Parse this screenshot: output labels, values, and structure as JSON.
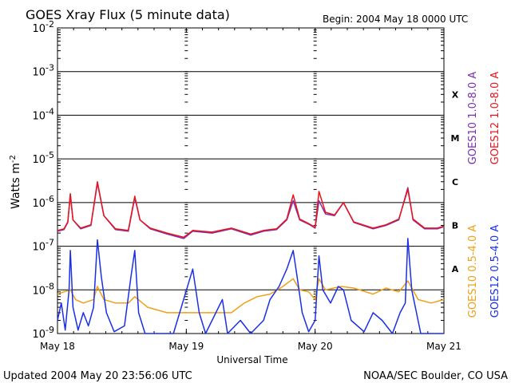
{
  "page": {
    "title": "GOES Xray Flux (5 minute data)",
    "begin_label": "Begin:  2004 May 18 0000 UTC",
    "updated": "Updated 2004 May 20 23:56:06 UTC",
    "credit": "NOAA/SEC Boulder, CO USA"
  },
  "chart_data": {
    "type": "line",
    "title": "GOES Xray Flux (5 minute data)",
    "xlabel": "Universal Time",
    "ylabel": "Watts m",
    "ylabel_superscript": "-2",
    "log_y": true,
    "ylim": [
      1e-09,
      0.01
    ],
    "y_ticks": [
      {
        "mant": "10",
        "exp": "-9"
      },
      {
        "mant": "10",
        "exp": "-8"
      },
      {
        "mant": "10",
        "exp": "-7"
      },
      {
        "mant": "10",
        "exp": "-6"
      },
      {
        "mant": "10",
        "exp": "-5"
      },
      {
        "mant": "10",
        "exp": "-4"
      },
      {
        "mant": "10",
        "exp": "-3"
      },
      {
        "mant": "10",
        "exp": "-2"
      }
    ],
    "xlim_days": [
      0,
      3
    ],
    "x_ticks": [
      "May 18",
      "May 19",
      "May 20",
      "May 21"
    ],
    "flare_classes": [
      {
        "label": "A",
        "flux": 3e-08
      },
      {
        "label": "B",
        "flux": 3e-07
      },
      {
        "label": "C",
        "flux": 3e-06
      },
      {
        "label": "M",
        "flux": 3e-05
      },
      {
        "label": "X",
        "flux": 0.0003
      }
    ],
    "grid": true,
    "colors": {
      "goes10_long": "#7a2fb0",
      "goes12_long": "#e8141c",
      "goes10_short": "#f0a018",
      "goes12_short": "#1a2fe8"
    },
    "series": [
      {
        "name": "GOES10 1.0-8.0 A",
        "color": "#7a2fb0",
        "points": [
          [
            0.0,
            2.2e-07
          ],
          [
            0.05,
            2.4e-07
          ],
          [
            0.08,
            3.5e-07
          ],
          [
            0.1,
            1.5e-06
          ],
          [
            0.12,
            4e-07
          ],
          [
            0.18,
            2.5e-07
          ],
          [
            0.26,
            3e-07
          ],
          [
            0.31,
            2.8e-06
          ],
          [
            0.36,
            5e-07
          ],
          [
            0.45,
            2.4e-07
          ],
          [
            0.55,
            2.2e-07
          ],
          [
            0.6,
            1.3e-06
          ],
          [
            0.64,
            4e-07
          ],
          [
            0.72,
            2.5e-07
          ],
          [
            0.85,
            1.9e-07
          ],
          [
            0.98,
            1.5e-07
          ],
          [
            1.05,
            2.2e-07
          ],
          [
            1.2,
            2e-07
          ],
          [
            1.35,
            2.5e-07
          ],
          [
            1.5,
            1.8e-07
          ],
          [
            1.6,
            2.2e-07
          ],
          [
            1.7,
            2.4e-07
          ],
          [
            1.78,
            4e-07
          ],
          [
            1.83,
            1.1e-06
          ],
          [
            1.88,
            4e-07
          ],
          [
            1.95,
            3.2e-07
          ],
          [
            2.0,
            2.6e-07
          ],
          [
            2.03,
            1.1e-06
          ],
          [
            2.08,
            5.5e-07
          ],
          [
            2.15,
            5e-07
          ],
          [
            2.22,
            1e-06
          ],
          [
            2.3,
            3.5e-07
          ],
          [
            2.45,
            2.5e-07
          ],
          [
            2.55,
            3e-07
          ],
          [
            2.65,
            4e-07
          ],
          [
            2.72,
            2.2e-06
          ],
          [
            2.76,
            4e-07
          ],
          [
            2.85,
            2.5e-07
          ],
          [
            2.95,
            2.5e-07
          ],
          [
            3.0,
            2.8e-07
          ]
        ]
      },
      {
        "name": "GOES12 1.0-8.0 A",
        "color": "#e8141c",
        "points": [
          [
            0.0,
            2.3e-07
          ],
          [
            0.05,
            2.5e-07
          ],
          [
            0.08,
            3.6e-07
          ],
          [
            0.1,
            1.6e-06
          ],
          [
            0.12,
            4e-07
          ],
          [
            0.18,
            2.6e-07
          ],
          [
            0.26,
            3.1e-07
          ],
          [
            0.31,
            3e-06
          ],
          [
            0.36,
            5e-07
          ],
          [
            0.45,
            2.5e-07
          ],
          [
            0.55,
            2.3e-07
          ],
          [
            0.6,
            1.4e-06
          ],
          [
            0.64,
            4e-07
          ],
          [
            0.72,
            2.6e-07
          ],
          [
            0.85,
            2e-07
          ],
          [
            0.98,
            1.6e-07
          ],
          [
            1.05,
            2.3e-07
          ],
          [
            1.2,
            2.1e-07
          ],
          [
            1.35,
            2.6e-07
          ],
          [
            1.5,
            1.9e-07
          ],
          [
            1.6,
            2.3e-07
          ],
          [
            1.7,
            2.5e-07
          ],
          [
            1.78,
            4.2e-07
          ],
          [
            1.83,
            1.5e-06
          ],
          [
            1.88,
            4.2e-07
          ],
          [
            1.95,
            3.3e-07
          ],
          [
            2.0,
            2.7e-07
          ],
          [
            2.03,
            1.8e-06
          ],
          [
            2.08,
            6e-07
          ],
          [
            2.15,
            5.2e-07
          ],
          [
            2.22,
            1e-06
          ],
          [
            2.3,
            3.6e-07
          ],
          [
            2.45,
            2.6e-07
          ],
          [
            2.55,
            3.1e-07
          ],
          [
            2.65,
            4.2e-07
          ],
          [
            2.72,
            2e-06
          ],
          [
            2.76,
            4.2e-07
          ],
          [
            2.85,
            2.6e-07
          ],
          [
            2.95,
            2.6e-07
          ],
          [
            3.0,
            2.9e-07
          ]
        ]
      },
      {
        "name": "GOES10 0.5-4.0 A",
        "color": "#f0a018",
        "points": [
          [
            0.0,
            8e-09
          ],
          [
            0.05,
            9e-09
          ],
          [
            0.1,
            1e-08
          ],
          [
            0.14,
            6e-09
          ],
          [
            0.2,
            5e-09
          ],
          [
            0.28,
            6e-09
          ],
          [
            0.31,
            1.2e-08
          ],
          [
            0.36,
            6e-09
          ],
          [
            0.45,
            5e-09
          ],
          [
            0.55,
            5e-09
          ],
          [
            0.6,
            7e-09
          ],
          [
            0.7,
            4e-09
          ],
          [
            0.85,
            3e-09
          ],
          [
            0.98,
            3e-09
          ],
          [
            1.05,
            3e-09
          ],
          [
            1.2,
            3e-09
          ],
          [
            1.35,
            3e-09
          ],
          [
            1.45,
            5e-09
          ],
          [
            1.55,
            7e-09
          ],
          [
            1.65,
            8e-09
          ],
          [
            1.75,
            1.2e-08
          ],
          [
            1.83,
            1.8e-08
          ],
          [
            1.88,
            1e-08
          ],
          [
            1.95,
            9e-09
          ],
          [
            2.0,
            6e-09
          ],
          [
            2.03,
            1.8e-08
          ],
          [
            2.08,
            1e-08
          ],
          [
            2.2,
            1.2e-08
          ],
          [
            2.3,
            1.1e-08
          ],
          [
            2.45,
            8e-09
          ],
          [
            2.55,
            1.1e-08
          ],
          [
            2.65,
            9e-09
          ],
          [
            2.72,
            1.6e-08
          ],
          [
            2.8,
            6e-09
          ],
          [
            2.9,
            5e-09
          ],
          [
            3.0,
            6e-09
          ]
        ]
      },
      {
        "name": "GOES12 0.5-4.0 A",
        "color": "#1a2fe8",
        "points": [
          [
            0.0,
            2e-09
          ],
          [
            0.03,
            5e-09
          ],
          [
            0.06,
            1.2e-09
          ],
          [
            0.09,
            1e-08
          ],
          [
            0.1,
            8e-08
          ],
          [
            0.12,
            4e-09
          ],
          [
            0.16,
            1.2e-09
          ],
          [
            0.2,
            3e-09
          ],
          [
            0.24,
            1.5e-09
          ],
          [
            0.28,
            4e-09
          ],
          [
            0.31,
            1.4e-07
          ],
          [
            0.34,
            2e-08
          ],
          [
            0.38,
            3e-09
          ],
          [
            0.44,
            1.1e-09
          ],
          [
            0.52,
            1.5e-09
          ],
          [
            0.57,
            2e-08
          ],
          [
            0.6,
            8e-08
          ],
          [
            0.63,
            3e-09
          ],
          [
            0.68,
            1e-09
          ],
          [
            0.72,
            1e-09
          ],
          [
            0.8,
            1e-09
          ],
          [
            0.9,
            1e-09
          ],
          [
            1.05,
            3e-08
          ],
          [
            1.1,
            3e-09
          ],
          [
            1.15,
            1e-09
          ],
          [
            1.28,
            6e-09
          ],
          [
            1.32,
            1e-09
          ],
          [
            1.42,
            2e-09
          ],
          [
            1.5,
            1e-09
          ],
          [
            1.6,
            2e-09
          ],
          [
            1.65,
            6e-09
          ],
          [
            1.72,
            1.2e-08
          ],
          [
            1.78,
            3e-08
          ],
          [
            1.83,
            8e-08
          ],
          [
            1.86,
            2e-08
          ],
          [
            1.9,
            3e-09
          ],
          [
            1.95,
            1.1e-09
          ],
          [
            2.0,
            2e-09
          ],
          [
            2.03,
            6e-08
          ],
          [
            2.06,
            1e-08
          ],
          [
            2.12,
            5e-09
          ],
          [
            2.18,
            1.2e-08
          ],
          [
            2.22,
            1e-08
          ],
          [
            2.28,
            2e-09
          ],
          [
            2.38,
            1.1e-09
          ],
          [
            2.45,
            3e-09
          ],
          [
            2.52,
            2e-09
          ],
          [
            2.6,
            1e-09
          ],
          [
            2.66,
            3e-09
          ],
          [
            2.7,
            5e-09
          ],
          [
            2.72,
            1.5e-07
          ],
          [
            2.75,
            1e-08
          ],
          [
            2.82,
            1e-09
          ],
          [
            2.92,
            1e-09
          ],
          [
            3.0,
            1e-09
          ]
        ]
      }
    ]
  }
}
